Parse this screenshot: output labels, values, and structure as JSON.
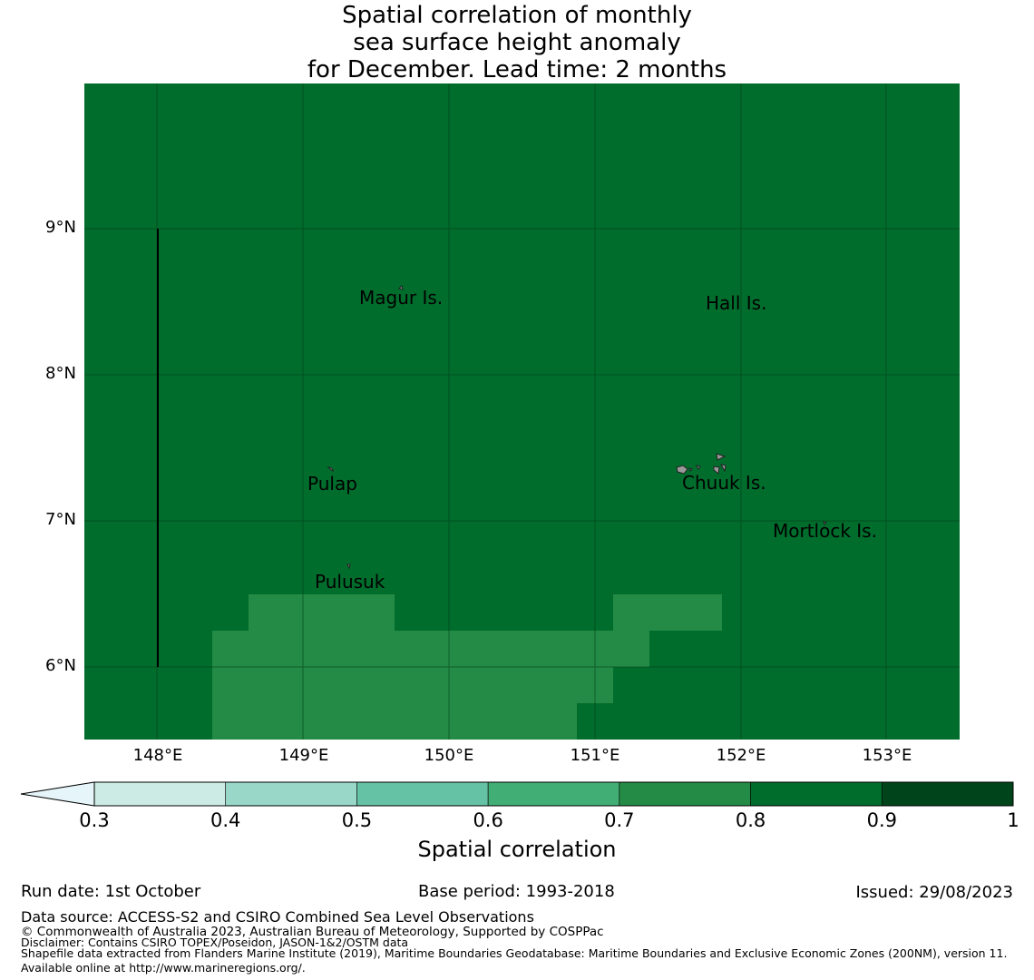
{
  "title": {
    "line1": "Spatial correlation of monthly",
    "line2": "sea surface height anomaly",
    "line3": "for December. Lead time: 2 months"
  },
  "map": {
    "lat_labels": [
      "9°N",
      "8°N",
      "7°N",
      "6°N"
    ],
    "lon_labels": [
      "148°E",
      "149°E",
      "150°E",
      "151°E",
      "152°E",
      "153°E"
    ],
    "places": [
      {
        "name": "Magur Is."
      },
      {
        "name": "Hall Is."
      },
      {
        "name": "Pulap"
      },
      {
        "name": "Chuuk Is."
      },
      {
        "name": "Mortlock Is."
      },
      {
        "name": "Pulusuk"
      }
    ],
    "field_values": {
      "background": 0.85,
      "patch": 0.75
    },
    "colors": {
      "c_0_3": "#e5f5f9",
      "c_0_4": "#cdebe5",
      "c_0_5": "#99d8c9",
      "c_0_6": "#66c2a4",
      "c_0_7": "#41ae76",
      "c_0_8": "#238b45",
      "c_0_9": "#006d2c",
      "c_1_0": "#00441b",
      "land": "#999999"
    }
  },
  "colorbar": {
    "label": "Spatial correlation",
    "ticks": [
      "0.3",
      "0.4",
      "0.5",
      "0.6",
      "0.7",
      "0.8",
      "0.9",
      "1"
    ],
    "segments": [
      {
        "from": 0.3,
        "to": 0.4,
        "color": "#cdebe5"
      },
      {
        "from": 0.4,
        "to": 0.5,
        "color": "#99d8c9"
      },
      {
        "from": 0.5,
        "to": 0.6,
        "color": "#66c2a4"
      },
      {
        "from": 0.6,
        "to": 0.7,
        "color": "#41ae76"
      },
      {
        "from": 0.7,
        "to": 0.8,
        "color": "#238b45"
      },
      {
        "from": 0.8,
        "to": 0.9,
        "color": "#006d2c"
      },
      {
        "from": 0.9,
        "to": 1.0,
        "color": "#00441b"
      }
    ],
    "extend_color": "#e5f5f9"
  },
  "footer": {
    "run_date": "Run date: 1st October",
    "base_period": "Base period: 1993-2018",
    "issued": "Issued: 29/08/2023",
    "data_source": "Data source: ACCESS-S2 and CSIRO Combined Sea Level Observations",
    "copyright": "© Commonwealth of Australia 2023, Australian Bureau of Meteorology, Supported by COSPPac",
    "disclaimer": "Disclaimer: Contains CSIRO TOPEX/Poseidon, JASON-1&2/OSTM data",
    "shapefile": "Shapefile data extracted from Flanders Marine Institute (2019), Maritime Boundaries Geodatabase: Maritime Boundaries and Exclusive Economic Zones (200NM), version 11. Available online at http://www.marineregions.org/."
  }
}
